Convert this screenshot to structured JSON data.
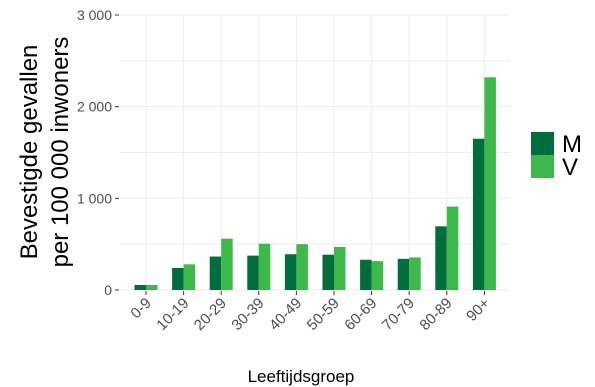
{
  "chart_data": {
    "type": "bar",
    "xlabel": "Leeftijdsgroep",
    "ylabel": [
      "Bevestigde gevallen",
      "per 100 000 inwoners"
    ],
    "categories": [
      "0-9",
      "10-19",
      "20-29",
      "30-39",
      "40-49",
      "50-59",
      "60-69",
      "70-79",
      "80-89",
      "90+"
    ],
    "series": [
      {
        "name": "M",
        "color": "#006d3c",
        "values": [
          55,
          240,
          365,
          375,
          390,
          385,
          330,
          340,
          695,
          1650
        ]
      },
      {
        "name": "V",
        "color": "#3cb94a",
        "values": [
          55,
          280,
          560,
          505,
          500,
          470,
          315,
          355,
          910,
          2320
        ]
      }
    ],
    "y_ticks": [
      {
        "value": 0,
        "label": "0"
      },
      {
        "value": 1000,
        "label": "1 000"
      },
      {
        "value": 2000,
        "label": "2 000"
      },
      {
        "value": 3000,
        "label": "3 000"
      }
    ],
    "ylim": [
      0,
      3000
    ],
    "grid": true,
    "legend_position": "right"
  }
}
